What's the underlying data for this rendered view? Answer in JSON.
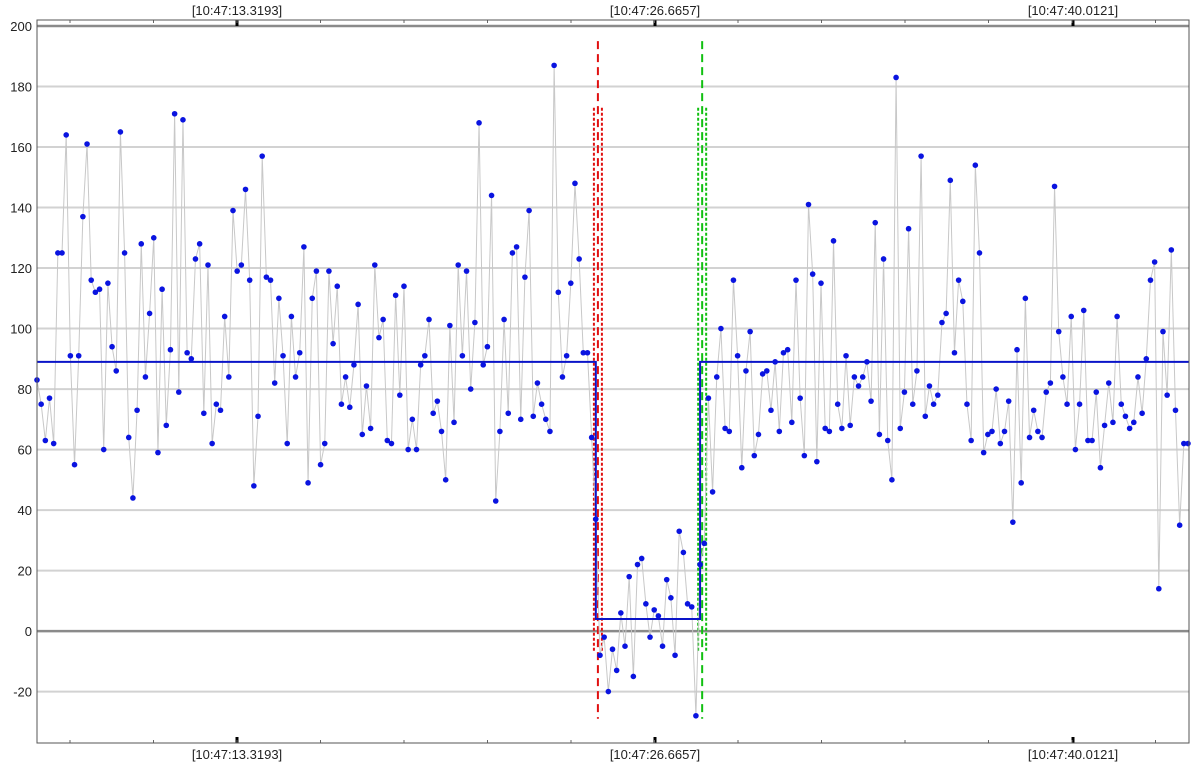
{
  "chart_data": {
    "type": "line",
    "title": "",
    "xlabel": "",
    "ylabel": "",
    "ylim": [
      -37,
      202
    ],
    "y_ticks": [
      -20,
      0,
      20,
      40,
      60,
      80,
      100,
      120,
      140,
      160,
      180,
      200
    ],
    "x_tick_labels": [
      "[10:47:13.3193]",
      "[10:47:26.6657]",
      "[10:47:40.0121]"
    ],
    "grid": true,
    "legend": "none",
    "series": [
      {
        "values": [
          83,
          75,
          63,
          77,
          62,
          125,
          125,
          164,
          91,
          55,
          91,
          137,
          161,
          116,
          112,
          113,
          60,
          115,
          94,
          86,
          165,
          125,
          64,
          44,
          73,
          128,
          84,
          105,
          130,
          59,
          113,
          68,
          93,
          171,
          79,
          169,
          92,
          90,
          123,
          128,
          72,
          121,
          62,
          75,
          73,
          104,
          84,
          139,
          119,
          121,
          146,
          116,
          48,
          71,
          157,
          117,
          116,
          82,
          110,
          91,
          62,
          104,
          84,
          92,
          127,
          49,
          110,
          119,
          55,
          62,
          119,
          95,
          114,
          75,
          84,
          74,
          88,
          108,
          65,
          81,
          67,
          121,
          97,
          103,
          63,
          62,
          111,
          78,
          114,
          60,
          70,
          60,
          88,
          91,
          103,
          72,
          76,
          66,
          50,
          101,
          69,
          121,
          91,
          119,
          80,
          102,
          168,
          88,
          94,
          144,
          43,
          66,
          103,
          72,
          125,
          127,
          70,
          117,
          139,
          71,
          82,
          75,
          70,
          66,
          187,
          112,
          84,
          91,
          115,
          148,
          123,
          92,
          92,
          64,
          37,
          -8,
          -2,
          -20,
          -6,
          -13,
          6,
          -5,
          18,
          -15,
          22,
          24,
          9,
          -2,
          7,
          5,
          -5,
          17,
          11,
          -8,
          33,
          26,
          9,
          8,
          -28,
          22,
          29,
          77,
          46,
          84,
          100,
          67,
          66,
          116,
          91,
          54,
          86,
          99,
          58,
          65,
          85,
          86,
          73,
          89,
          66,
          92,
          93,
          69,
          116,
          77,
          58,
          141,
          118,
          56,
          115,
          67,
          66,
          129,
          75,
          67,
          91,
          68,
          84,
          81,
          84,
          89,
          76,
          135,
          65,
          123,
          63,
          50,
          183,
          67,
          79,
          133,
          75,
          86,
          157,
          71,
          81,
          75,
          78,
          102,
          105,
          149,
          92,
          116,
          109,
          75,
          63,
          154,
          125,
          59,
          65,
          66,
          80,
          62,
          66,
          76,
          36,
          93,
          49,
          110,
          64,
          73,
          66,
          64,
          79,
          82,
          147,
          99,
          84,
          75,
          104,
          60,
          75,
          106,
          63,
          63,
          79,
          54,
          68,
          82,
          69,
          104,
          75,
          71,
          67,
          69,
          84,
          72,
          90,
          116,
          122,
          14,
          99,
          78,
          126,
          73,
          35,
          62,
          62
        ],
        "color": "#0a14e0",
        "line_color": "#c8c8c8"
      },
      {
        "type": "step",
        "segments": [
          {
            "value": 89,
            "from_index": 0,
            "to_index": 134
          },
          {
            "value": 4,
            "from_index": 134,
            "to_index": 159
          },
          {
            "value": 89,
            "from_index": 159,
            "to_index": 267
          }
        ],
        "color": "#0a14c8"
      }
    ],
    "markers": [
      {
        "kind": "change-start",
        "color": "#e01010",
        "at_index": 134.5
      },
      {
        "kind": "change-end",
        "color": "#10c010",
        "at_index": 159.5
      }
    ]
  }
}
